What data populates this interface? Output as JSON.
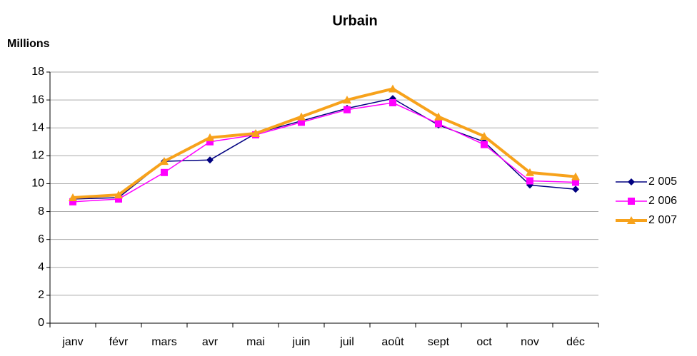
{
  "chart_data": {
    "type": "line",
    "title": "Urbain",
    "y_label": "Millions",
    "categories": [
      "janv",
      "févr",
      "mars",
      "avr",
      "mai",
      "juin",
      "juil",
      "août",
      "sept",
      "oct",
      "nov",
      "déc"
    ],
    "series": [
      {
        "name": "2 005",
        "color": "#000080",
        "marker": "diamond",
        "values": [
          8.9,
          9.0,
          11.6,
          11.7,
          13.6,
          14.5,
          15.4,
          16.1,
          14.2,
          13.0,
          9.9,
          9.6
        ]
      },
      {
        "name": "2 006",
        "color": "#ff00ff",
        "marker": "square",
        "values": [
          8.7,
          8.9,
          10.8,
          13.0,
          13.5,
          14.4,
          15.3,
          15.8,
          14.3,
          12.8,
          10.2,
          10.1
        ]
      },
      {
        "name": "2 007",
        "color": "#f7a21b",
        "marker": "triangle",
        "values": [
          9.0,
          9.2,
          11.6,
          13.3,
          13.6,
          14.8,
          16.0,
          16.8,
          14.8,
          13.4,
          10.8,
          10.5
        ]
      }
    ],
    "ylim": [
      0,
      18
    ],
    "yticks": [
      0,
      2,
      4,
      6,
      8,
      10,
      12,
      14,
      16,
      18
    ],
    "grid": true,
    "legend": "right"
  }
}
